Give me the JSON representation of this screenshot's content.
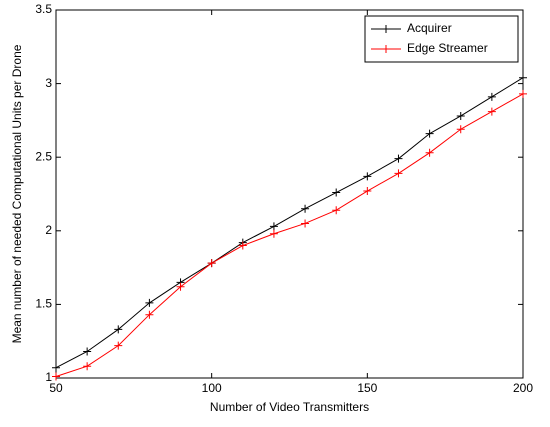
{
  "chart_data": {
    "type": "line",
    "x_label": "Number of Video Transmitters",
    "y_label": "Mean number of needed Computational Units per Drone",
    "x": [
      50,
      60,
      70,
      80,
      90,
      100,
      110,
      120,
      130,
      140,
      150,
      160,
      170,
      180,
      190,
      200
    ],
    "series": [
      {
        "name": "Acquirer",
        "color": "#000000",
        "values": [
          1.07,
          1.18,
          1.33,
          1.51,
          1.65,
          1.78,
          1.92,
          2.03,
          2.15,
          2.26,
          2.37,
          2.49,
          2.66,
          2.78,
          2.91,
          3.04
        ]
      },
      {
        "name": "Edge Streamer",
        "color": "#ff0000",
        "values": [
          1.01,
          1.08,
          1.22,
          1.43,
          1.62,
          1.78,
          1.9,
          1.98,
          2.05,
          2.14,
          2.27,
          2.39,
          2.53,
          2.69,
          2.81,
          2.93
        ]
      }
    ],
    "xlim": [
      50,
      200
    ],
    "xticks": [
      50,
      100,
      150,
      200
    ],
    "ylim": [
      1,
      3.5
    ],
    "yticks": [
      1,
      1.5,
      2,
      2.5,
      3,
      3.5
    ],
    "grid": false,
    "legend": "top-right",
    "marker": "+"
  }
}
